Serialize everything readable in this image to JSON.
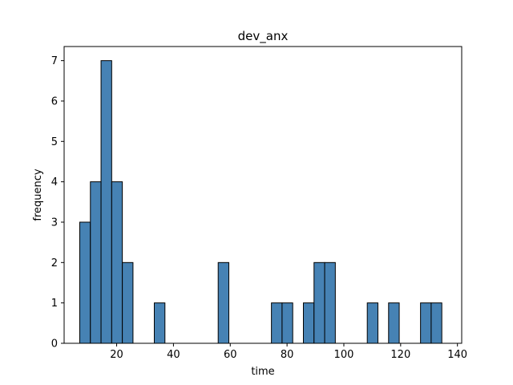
{
  "chart_data": {
    "type": "bar",
    "title": "dev_anx",
    "xlabel": "time",
    "ylabel": "frequency",
    "xlim": [
      1.5,
      141.5
    ],
    "ylim": [
      0,
      7.35
    ],
    "xticks": [
      20,
      40,
      60,
      80,
      100,
      120,
      140
    ],
    "yticks": [
      0,
      1,
      2,
      3,
      4,
      5,
      6,
      7
    ],
    "bin_width": 3.75,
    "bins": [
      {
        "x": 7,
        "count": 3
      },
      {
        "x": 10.75,
        "count": 4
      },
      {
        "x": 14.5,
        "count": 7
      },
      {
        "x": 18.25,
        "count": 4
      },
      {
        "x": 22,
        "count": 2
      },
      {
        "x": 25.75,
        "count": 0
      },
      {
        "x": 29.5,
        "count": 0
      },
      {
        "x": 33.25,
        "count": 1
      },
      {
        "x": 37,
        "count": 0
      },
      {
        "x": 40.75,
        "count": 0
      },
      {
        "x": 44.5,
        "count": 0
      },
      {
        "x": 48.25,
        "count": 0
      },
      {
        "x": 52,
        "count": 0
      },
      {
        "x": 55.75,
        "count": 2
      },
      {
        "x": 59.5,
        "count": 0
      },
      {
        "x": 63.25,
        "count": 0
      },
      {
        "x": 67,
        "count": 0
      },
      {
        "x": 70.75,
        "count": 0
      },
      {
        "x": 74.5,
        "count": 1
      },
      {
        "x": 78.25,
        "count": 1
      },
      {
        "x": 82,
        "count": 0
      },
      {
        "x": 85.75,
        "count": 1
      },
      {
        "x": 89.5,
        "count": 2
      },
      {
        "x": 93.25,
        "count": 2
      },
      {
        "x": 97,
        "count": 0
      },
      {
        "x": 100.75,
        "count": 0
      },
      {
        "x": 104.5,
        "count": 0
      },
      {
        "x": 108.25,
        "count": 1
      },
      {
        "x": 112,
        "count": 0
      },
      {
        "x": 115.75,
        "count": 1
      },
      {
        "x": 119.5,
        "count": 0
      },
      {
        "x": 123.25,
        "count": 0
      },
      {
        "x": 127,
        "count": 1
      },
      {
        "x": 130.75,
        "count": 1
      }
    ],
    "bar_color": "#4682b4",
    "edge_color": "#000000",
    "grid": false,
    "legend": "none"
  }
}
